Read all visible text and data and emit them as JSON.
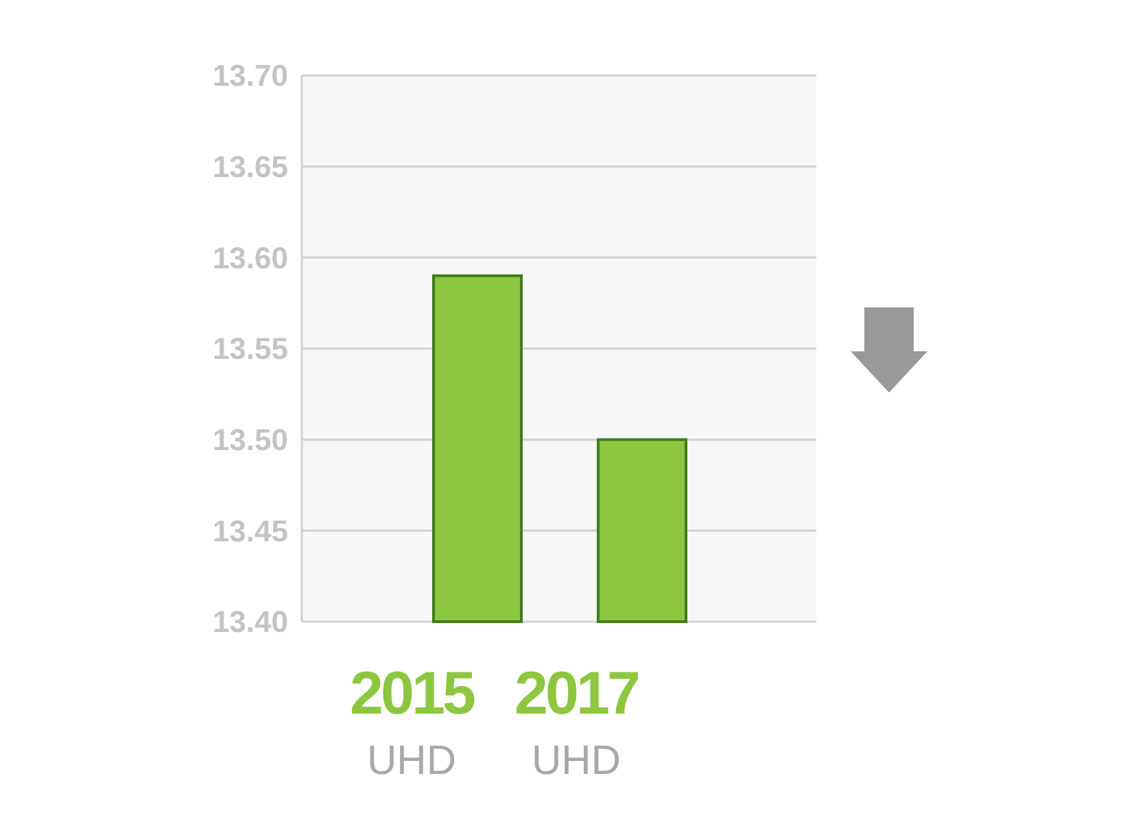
{
  "chart_data": {
    "type": "bar",
    "categories": [
      "2015 UHD",
      "2017 UHD"
    ],
    "values": [
      13.59,
      13.5
    ],
    "color": "#8dc63f",
    "ylim": [
      13.4,
      13.7
    ],
    "yticks": [
      {
        "value": 13.4,
        "label": "13.40"
      },
      {
        "value": 13.45,
        "label": "13.45"
      },
      {
        "value": 13.5,
        "label": "13.50"
      },
      {
        "value": 13.55,
        "label": "13.55"
      },
      {
        "value": 13.6,
        "label": "13.60"
      },
      {
        "value": 13.65,
        "label": "13.65"
      },
      {
        "value": 13.7,
        "label": "13.70"
      }
    ],
    "grid": "y"
  }
}
